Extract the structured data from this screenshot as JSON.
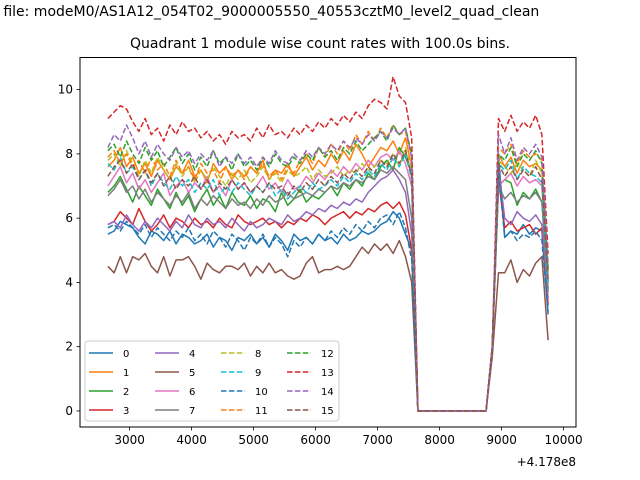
{
  "figure_title": "n file: modeM0/AS1A12_054T02_9000005550_40553cztM0_level2_quad_clean",
  "chart_data": {
    "type": "line",
    "title": "Quadrant 1 module wise count rates with 100.0s bins.",
    "xlabel": "",
    "ylabel": "",
    "offset_label": "+4.178e8",
    "xlim": [
      2200,
      10200
    ],
    "ylim": [
      -0.5,
      11
    ],
    "xticks": [
      3000,
      4000,
      5000,
      6000,
      7000,
      8000,
      9000,
      10000
    ],
    "yticks": [
      0,
      2,
      4,
      6,
      8,
      10
    ],
    "legend_position": "lower-left",
    "colors": [
      "#1f77b4",
      "#ff7f0e",
      "#2ca02c",
      "#d62728",
      "#9467bd",
      "#8c564b",
      "#e377c2",
      "#7f7f7f",
      "#bcbd22",
      "#17becf",
      "#1f77b4",
      "#ff7f0e",
      "#2ca02c",
      "#d62728",
      "#9467bd",
      "#8c564b"
    ],
    "x": [
      2650,
      2750,
      2850,
      2950,
      3050,
      3150,
      3250,
      3350,
      3450,
      3550,
      3650,
      3750,
      3850,
      3950,
      4050,
      4150,
      4250,
      4350,
      4450,
      4550,
      4650,
      4750,
      4850,
      4950,
      5050,
      5150,
      5250,
      5350,
      5450,
      5550,
      5650,
      5750,
      5850,
      5950,
      6050,
      6150,
      6250,
      6350,
      6450,
      6550,
      6650,
      6750,
      6850,
      6950,
      7050,
      7150,
      7250,
      7350,
      7450,
      7550,
      7650,
      8750,
      8850,
      8950,
      9050,
      9150,
      9250,
      9350,
      9450,
      9550,
      9650,
      9750
    ],
    "series": [
      {
        "name": "0",
        "values": [
          5.5,
          5.6,
          5.9,
          5.8,
          5.7,
          5.4,
          5.2,
          5.6,
          5.5,
          5.3,
          5.6,
          5.2,
          5.5,
          5.4,
          5.2,
          5.3,
          5.5,
          5.1,
          5.4,
          5.3,
          5.0,
          5.4,
          5.3,
          5.5,
          5.2,
          5.4,
          5.1,
          5.5,
          5.3,
          5.0,
          5.5,
          5.3,
          5.4,
          5.2,
          5.5,
          5.3,
          5.4,
          5.2,
          5.5,
          5.3,
          5.4,
          5.6,
          5.5,
          5.6,
          5.8,
          5.9,
          6.2,
          6.0,
          5.5,
          5.0,
          0.0,
          0.0,
          2.0,
          8.0,
          5.4,
          5.6,
          5.5,
          5.8,
          5.5,
          5.7,
          5.6,
          3.0
        ]
      },
      {
        "name": "1",
        "values": [
          7.6,
          7.8,
          8.2,
          7.6,
          7.9,
          7.4,
          7.7,
          7.3,
          7.8,
          7.5,
          7.2,
          7.6,
          7.4,
          7.8,
          7.3,
          7.5,
          7.1,
          7.7,
          7.4,
          7.6,
          7.2,
          7.5,
          7.3,
          7.6,
          7.4,
          7.8,
          7.2,
          7.5,
          7.4,
          7.7,
          7.3,
          7.6,
          7.9,
          7.5,
          7.8,
          7.6,
          8.0,
          7.7,
          8.1,
          7.8,
          8.3,
          8.0,
          7.6,
          7.9,
          8.2,
          8.1,
          8.4,
          8.0,
          8.5,
          7.6,
          0.0,
          0.0,
          2.0,
          8.0,
          7.6,
          7.9,
          7.4,
          7.8,
          7.6,
          7.7,
          7.5,
          4.3
        ]
      },
      {
        "name": "2",
        "values": [
          6.8,
          7.0,
          7.3,
          6.9,
          6.5,
          7.0,
          6.7,
          6.4,
          6.9,
          6.6,
          6.3,
          6.8,
          6.4,
          6.7,
          6.2,
          6.6,
          6.9,
          6.4,
          6.7,
          6.3,
          6.8,
          6.5,
          6.4,
          6.7,
          6.3,
          6.6,
          6.5,
          6.2,
          6.8,
          6.4,
          6.6,
          6.9,
          6.5,
          6.7,
          6.6,
          6.8,
          7.0,
          6.7,
          7.1,
          6.9,
          7.2,
          7.0,
          7.4,
          7.2,
          7.6,
          7.8,
          7.5,
          8.2,
          7.9,
          7.4,
          0.0,
          0.0,
          2.0,
          7.0,
          7.2,
          7.1,
          6.4,
          6.8,
          6.6,
          6.9,
          6.5,
          3.8
        ]
      },
      {
        "name": "3",
        "values": [
          5.8,
          5.9,
          6.2,
          6.0,
          5.8,
          6.3,
          5.9,
          5.6,
          5.8,
          6.1,
          5.7,
          6.0,
          5.9,
          5.7,
          6.0,
          5.8,
          5.9,
          5.7,
          6.0,
          5.8,
          5.7,
          6.1,
          5.9,
          5.8,
          5.9,
          6.0,
          5.8,
          5.9,
          5.7,
          5.9,
          5.8,
          6.0,
          5.9,
          6.1,
          6.0,
          5.8,
          6.0,
          6.1,
          6.2,
          6.0,
          6.2,
          6.1,
          6.3,
          6.2,
          6.4,
          6.5,
          6.3,
          6.5,
          6.1,
          5.0,
          0.0,
          0.0,
          2.0,
          7.2,
          5.7,
          5.9,
          5.6,
          5.7,
          5.8,
          5.5,
          5.7,
          3.3
        ]
      },
      {
        "name": "4",
        "values": [
          5.8,
          5.9,
          5.7,
          6.1,
          5.8,
          5.6,
          5.9,
          5.7,
          6.0,
          5.8,
          5.6,
          5.9,
          5.7,
          6.1,
          5.8,
          5.7,
          6.0,
          5.8,
          5.9,
          5.7,
          6.0,
          5.8,
          5.6,
          5.9,
          5.7,
          5.8,
          6.0,
          5.9,
          5.8,
          6.1,
          5.9,
          6.0,
          6.2,
          6.1,
          6.3,
          6.2,
          6.4,
          6.3,
          6.5,
          6.4,
          6.6,
          6.5,
          6.8,
          7.0,
          7.2,
          7.3,
          7.5,
          7.2,
          6.8,
          5.5,
          0.0,
          0.0,
          2.0,
          7.6,
          6.0,
          5.8,
          6.2,
          6.0,
          5.9,
          6.1,
          5.8,
          3.5
        ]
      },
      {
        "name": "5",
        "values": [
          4.5,
          4.3,
          4.8,
          4.3,
          4.8,
          4.7,
          4.9,
          4.5,
          4.3,
          4.8,
          4.2,
          4.7,
          4.7,
          4.8,
          4.5,
          4.1,
          4.6,
          4.4,
          4.3,
          4.5,
          4.5,
          4.4,
          4.6,
          4.2,
          4.5,
          4.3,
          4.6,
          4.3,
          4.4,
          4.2,
          4.1,
          4.2,
          4.6,
          4.8,
          4.3,
          4.4,
          4.4,
          4.5,
          4.4,
          4.5,
          4.8,
          5.1,
          4.9,
          5.2,
          5.0,
          5.2,
          4.9,
          5.3,
          4.8,
          4.0,
          0.0,
          0.0,
          1.7,
          4.3,
          4.3,
          4.7,
          4.0,
          4.4,
          4.2,
          4.6,
          4.8,
          2.2
        ]
      },
      {
        "name": "6",
        "values": [
          7.0,
          7.3,
          7.6,
          7.1,
          7.4,
          6.9,
          7.2,
          6.8,
          7.1,
          7.4,
          6.7,
          7.0,
          7.2,
          6.8,
          7.1,
          6.9,
          7.3,
          6.8,
          7.0,
          6.7,
          7.2,
          6.9,
          7.1,
          6.8,
          7.0,
          7.3,
          6.9,
          7.1,
          6.8,
          7.2,
          6.9,
          7.0,
          7.3,
          7.1,
          7.4,
          7.2,
          7.5,
          7.3,
          7.6,
          7.4,
          7.7,
          7.5,
          7.8,
          7.6,
          7.9,
          8.0,
          7.8,
          8.1,
          7.7,
          7.0,
          0.0,
          0.0,
          2.0,
          7.0,
          7.2,
          7.4,
          7.0,
          7.3,
          7.1,
          7.2,
          7.0,
          4.0
        ]
      },
      {
        "name": "7",
        "values": [
          6.7,
          6.9,
          7.2,
          6.8,
          7.0,
          6.6,
          6.9,
          6.5,
          6.8,
          6.6,
          6.4,
          6.7,
          6.5,
          6.8,
          6.3,
          6.6,
          6.4,
          6.7,
          6.5,
          6.3,
          6.6,
          6.4,
          6.5,
          6.3,
          6.6,
          6.4,
          6.7,
          6.5,
          6.6,
          6.8,
          6.6,
          6.7,
          6.8,
          6.7,
          6.9,
          6.8,
          7.0,
          6.9,
          7.1,
          7.0,
          7.2,
          7.1,
          7.3,
          7.2,
          7.5,
          7.4,
          7.6,
          7.4,
          7.2,
          6.0,
          0.0,
          0.0,
          2.0,
          7.0,
          6.6,
          6.8,
          6.5,
          6.7,
          6.6,
          6.8,
          6.5,
          3.7
        ]
      },
      {
        "name": "8",
        "values": [
          7.8,
          8.0,
          7.6,
          8.1,
          7.7,
          7.3,
          7.8,
          7.4,
          7.9,
          7.5,
          7.2,
          7.7,
          7.3,
          7.6,
          7.1,
          7.5,
          7.2,
          7.6,
          7.3,
          7.0,
          7.4,
          7.2,
          7.5,
          7.1,
          7.3,
          7.6,
          7.2,
          7.4,
          7.1,
          7.5,
          7.3,
          7.4,
          7.6,
          7.2,
          7.5,
          7.3,
          7.4,
          7.6,
          7.3,
          7.5,
          7.4,
          7.7,
          7.5,
          7.6,
          7.8,
          7.7,
          8.0,
          7.6,
          8.2,
          7.5,
          0.0,
          0.0,
          2.0,
          7.8,
          7.6,
          7.4,
          7.7,
          7.5,
          7.3,
          7.8,
          7.4,
          4.2
        ]
      },
      {
        "name": "9",
        "values": [
          7.7,
          7.5,
          7.9,
          7.4,
          7.6,
          7.2,
          7.5,
          7.0,
          7.4,
          7.1,
          6.9,
          7.3,
          7.0,
          7.2,
          6.8,
          7.1,
          6.9,
          7.2,
          6.7,
          7.0,
          6.8,
          7.1,
          6.9,
          6.7,
          7.0,
          6.8,
          7.1,
          6.7,
          6.9,
          6.6,
          6.8,
          7.0,
          6.8,
          7.1,
          6.9,
          7.0,
          7.2,
          7.0,
          7.3,
          7.1,
          7.4,
          7.2,
          7.5,
          7.3,
          7.7,
          7.5,
          7.9,
          7.6,
          8.0,
          7.2,
          0.0,
          0.0,
          2.0,
          7.7,
          7.5,
          7.8,
          7.2,
          7.6,
          7.4,
          7.3,
          7.1,
          4.0
        ]
      },
      {
        "name": "10",
        "values": [
          5.7,
          5.8,
          5.6,
          5.9,
          5.7,
          5.5,
          5.8,
          5.4,
          5.7,
          5.5,
          5.3,
          5.6,
          5.4,
          5.7,
          5.3,
          5.5,
          5.2,
          5.6,
          5.4,
          5.1,
          5.5,
          5.3,
          5.0,
          5.4,
          5.2,
          5.5,
          5.1,
          5.4,
          5.2,
          4.8,
          5.3,
          5.1,
          5.4,
          5.2,
          5.5,
          5.3,
          5.6,
          5.4,
          5.7,
          5.5,
          5.8,
          5.6,
          5.9,
          5.7,
          6.0,
          6.1,
          5.8,
          6.2,
          5.7,
          4.7,
          0.0,
          0.0,
          2.0,
          7.5,
          5.4,
          5.6,
          5.3,
          5.5,
          5.4,
          5.6,
          5.3,
          3.1
        ]
      },
      {
        "name": "11",
        "values": [
          7.9,
          8.1,
          7.7,
          8.0,
          7.6,
          7.8,
          7.4,
          7.9,
          7.5,
          7.7,
          7.3,
          7.8,
          7.4,
          7.6,
          7.2,
          7.7,
          7.4,
          7.5,
          7.1,
          7.6,
          7.3,
          7.5,
          7.2,
          7.6,
          7.4,
          7.7,
          7.3,
          7.5,
          7.2,
          7.6,
          7.4,
          7.8,
          8.0,
          7.7,
          8.2,
          7.9,
          8.3,
          8.0,
          8.4,
          8.1,
          8.6,
          8.3,
          8.7,
          8.4,
          8.8,
          8.5,
          8.9,
          8.6,
          8.7,
          7.9,
          0.0,
          0.0,
          2.0,
          8.2,
          8.0,
          8.3,
          7.7,
          8.1,
          7.9,
          8.0,
          7.8,
          4.5
        ]
      },
      {
        "name": "12",
        "values": [
          8.1,
          8.3,
          7.9,
          8.4,
          8.0,
          7.7,
          8.2,
          7.8,
          8.1,
          7.6,
          7.9,
          8.2,
          7.7,
          8.0,
          7.5,
          7.9,
          7.6,
          8.1,
          7.7,
          7.9,
          7.5,
          8.0,
          7.6,
          7.8,
          7.5,
          7.9,
          7.6,
          8.0,
          7.7,
          7.6,
          7.9,
          7.7,
          8.0,
          7.8,
          8.2,
          7.9,
          8.1,
          7.8,
          8.2,
          8.0,
          8.4,
          8.1,
          8.3,
          8.5,
          8.7,
          8.4,
          8.9,
          8.6,
          8.8,
          8.0,
          0.0,
          0.0,
          2.0,
          8.0,
          7.8,
          8.2,
          7.6,
          8.0,
          7.8,
          8.1,
          7.7,
          4.4
        ]
      },
      {
        "name": "13",
        "values": [
          9.1,
          9.3,
          9.5,
          9.4,
          9.0,
          8.7,
          9.1,
          8.6,
          8.8,
          8.4,
          8.9,
          8.6,
          9.0,
          8.7,
          8.8,
          8.5,
          8.7,
          8.4,
          8.6,
          8.3,
          8.7,
          8.5,
          8.6,
          8.4,
          8.8,
          8.5,
          8.9,
          8.6,
          8.7,
          8.5,
          8.8,
          8.6,
          8.9,
          8.7,
          9.0,
          8.8,
          9.1,
          8.9,
          9.2,
          9.0,
          9.3,
          9.1,
          9.5,
          9.7,
          9.6,
          9.4,
          10.4,
          9.8,
          9.6,
          8.5,
          0.0,
          0.0,
          2.0,
          9.1,
          8.7,
          9.2,
          8.7,
          9.0,
          8.8,
          9.2,
          8.6,
          4.9
        ]
      },
      {
        "name": "14",
        "values": [
          8.2,
          8.6,
          8.4,
          8.9,
          8.5,
          8.0,
          8.4,
          7.9,
          8.3,
          8.0,
          7.8,
          8.2,
          7.9,
          8.1,
          7.7,
          8.0,
          7.8,
          8.1,
          7.6,
          7.9,
          7.7,
          8.0,
          7.7,
          7.9,
          7.6,
          7.9,
          7.7,
          8.1,
          7.8,
          7.7,
          8.0,
          7.8,
          8.1,
          7.9,
          8.2,
          8.0,
          8.3,
          8.1,
          8.4,
          8.2,
          8.5,
          8.3,
          8.6,
          8.4,
          8.7,
          8.5,
          8.8,
          8.6,
          8.8,
          7.9,
          0.0,
          0.0,
          2.0,
          8.6,
          8.0,
          8.5,
          7.8,
          8.2,
          8.0,
          8.3,
          7.9,
          4.5
        ]
      },
      {
        "name": "15",
        "values": [
          7.3,
          7.6,
          7.8,
          7.4,
          7.7,
          7.2,
          7.5,
          7.1,
          7.4,
          7.0,
          7.3,
          6.9,
          7.2,
          7.0,
          7.3,
          6.9,
          7.2,
          6.8,
          7.1,
          6.9,
          7.2,
          6.9,
          7.1,
          6.8,
          7.0,
          6.8,
          7.1,
          6.9,
          7.0,
          6.7,
          7.0,
          6.8,
          7.1,
          6.9,
          7.2,
          7.0,
          7.3,
          7.1,
          7.4,
          7.2,
          7.5,
          7.3,
          7.6,
          7.4,
          7.8,
          7.6,
          8.0,
          7.7,
          8.1,
          7.3,
          0.0,
          0.0,
          2.0,
          7.7,
          7.3,
          7.6,
          7.2,
          7.5,
          7.3,
          7.6,
          7.2,
          4.1
        ]
      }
    ]
  }
}
